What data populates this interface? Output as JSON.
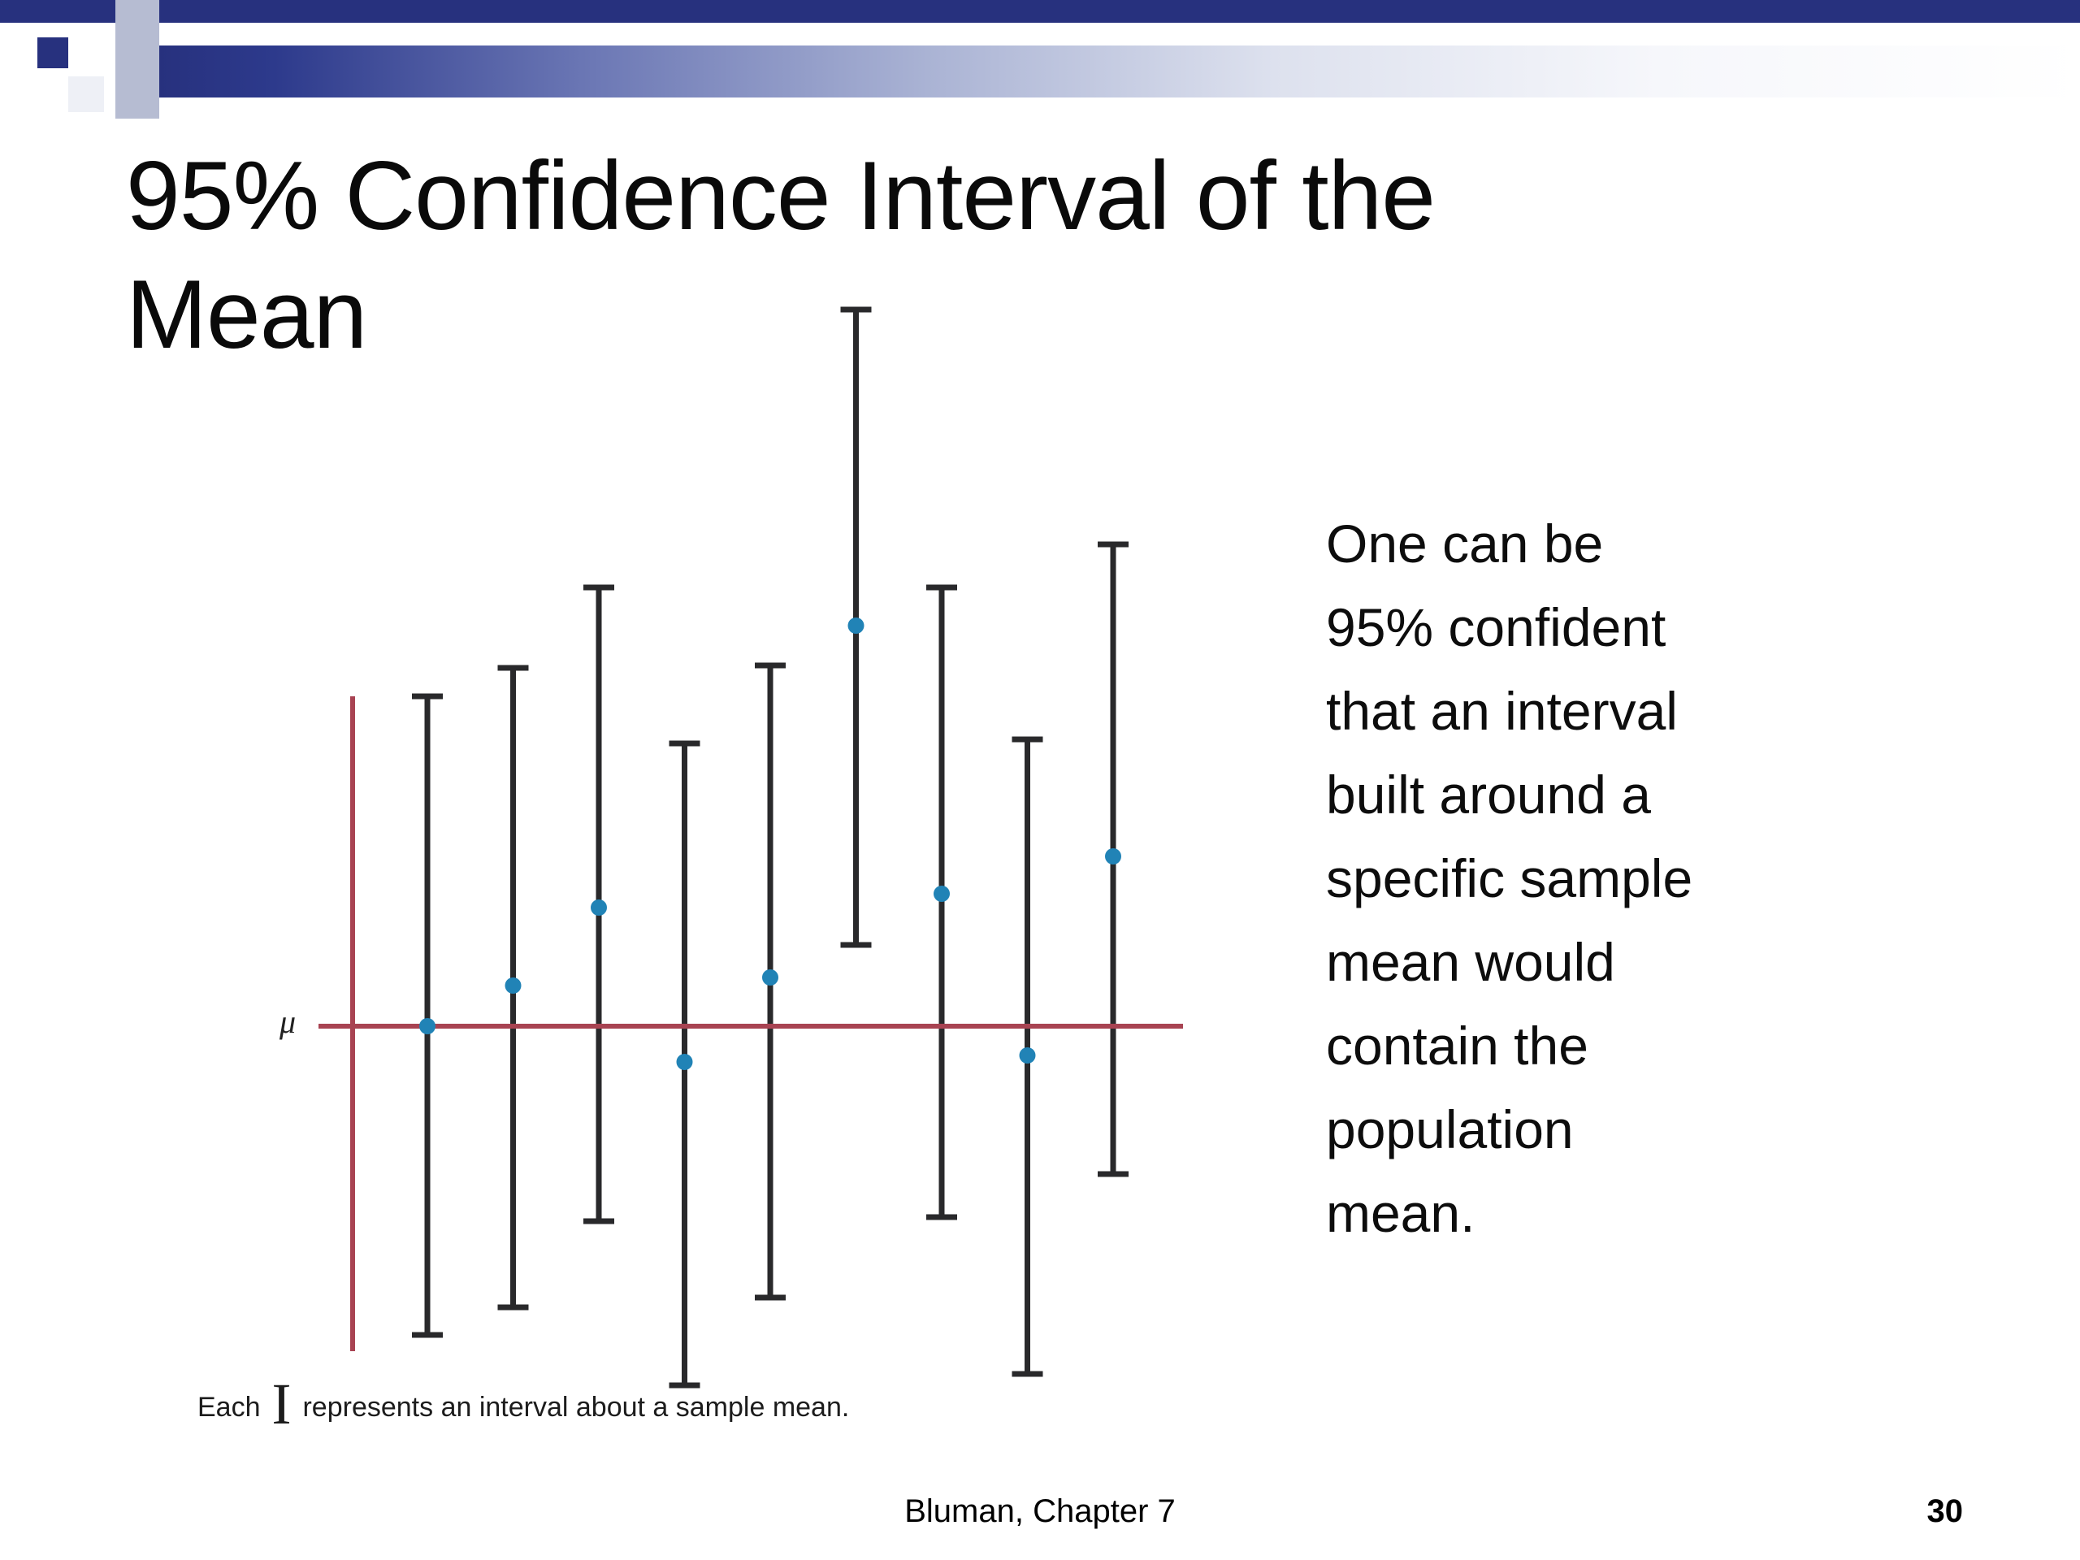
{
  "slide": {
    "title": "95% Confidence Interval of the\nMean",
    "body_text": "One can be\n95% confident\nthat an interval\nbuilt around a\nspecific sample\nmean would\ncontain the\npopulation\nmean.",
    "mu_label": "μ",
    "caption": {
      "prefix": "Each",
      "symbol": "I",
      "suffix": "represents an interval about a sample mean."
    },
    "footer": "Bluman, Chapter 7",
    "page_number": "30"
  },
  "colors": {
    "accent_navy": "#27317e",
    "decor_gray": "#b6bcd2",
    "red_line": "#a84352",
    "dot_blue": "#2183b6",
    "bar_black": "#29292b"
  },
  "chart_data": {
    "type": "scatter",
    "subtype": "confidence-interval-error-bars",
    "title": "",
    "xlabel": "",
    "ylabel": "",
    "grid": false,
    "mu_label": "μ",
    "mu_value": 0,
    "units": "distance from population mean μ (arbitrary units, estimated from figure)",
    "intervals": [
      {
        "x": 1,
        "mean": 0.0,
        "low": -3.8,
        "high": 4.06,
        "contains_mu": true
      },
      {
        "x": 2,
        "mean": 0.5,
        "low": -3.46,
        "high": 4.41,
        "contains_mu": true
      },
      {
        "x": 3,
        "mean": 1.46,
        "low": -2.4,
        "high": 5.4,
        "contains_mu": true
      },
      {
        "x": 4,
        "mean": -0.44,
        "low": -4.42,
        "high": 3.48,
        "contains_mu": true
      },
      {
        "x": 5,
        "mean": 0.6,
        "low": -3.34,
        "high": 4.44,
        "contains_mu": true
      },
      {
        "x": 6,
        "mean": 4.93,
        "low": 1.0,
        "high": 8.82,
        "contains_mu": false
      },
      {
        "x": 7,
        "mean": 1.63,
        "low": -2.35,
        "high": 5.4,
        "contains_mu": true
      },
      {
        "x": 8,
        "mean": -0.36,
        "low": -4.28,
        "high": 3.53,
        "contains_mu": true
      },
      {
        "x": 9,
        "mean": 2.09,
        "low": -1.82,
        "high": 5.93,
        "contains_mu": true
      }
    ],
    "note": "Nine vertical I-beam intervals about sample means (blue dots) drawn against a horizontal red line at the population mean μ; the sixth interval lies entirely above μ and does not contain the population mean."
  }
}
